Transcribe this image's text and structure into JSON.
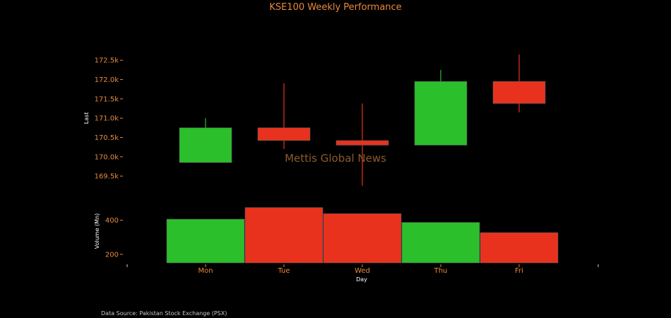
{
  "chart_data": {
    "type": "candlestick+bar",
    "title": "KSE100 Weekly Performance",
    "watermark": "Mettis Global News",
    "source": "Data Source: Pakistan Stock Exchange (PSX)",
    "xlabel": "Day",
    "categories": [
      "Mon",
      "Tue",
      "Wed",
      "Thu",
      "Fri"
    ],
    "price": {
      "ylabel": "Last",
      "ylim": [
        169100,
        173200
      ],
      "ticks": [
        169500,
        170000,
        170500,
        171000,
        171500,
        172000,
        172500
      ],
      "tick_labels": [
        "169.5k",
        "170.0k",
        "170.5k",
        "171.0k",
        "171.5k",
        "172.0k",
        "172.5k"
      ],
      "open": [
        169850,
        170750,
        170420,
        170300,
        171950
      ],
      "high": [
        171000,
        171900,
        171380,
        172250,
        172650
      ],
      "low": [
        169850,
        170200,
        169250,
        170300,
        171150
      ],
      "close": [
        170750,
        170420,
        170300,
        171950,
        171380
      ]
    },
    "volume": {
      "ylabel": "Volume (Mn)",
      "ylim": [
        150,
        510
      ],
      "ticks": [
        200,
        400
      ],
      "tick_labels": [
        "200",
        "400"
      ],
      "values": [
        406,
        474,
        438,
        387,
        327
      ]
    },
    "colors": {
      "up": "#2bbf2b",
      "down": "#e8321e",
      "text": "#e8893a",
      "background": "#000000"
    }
  }
}
